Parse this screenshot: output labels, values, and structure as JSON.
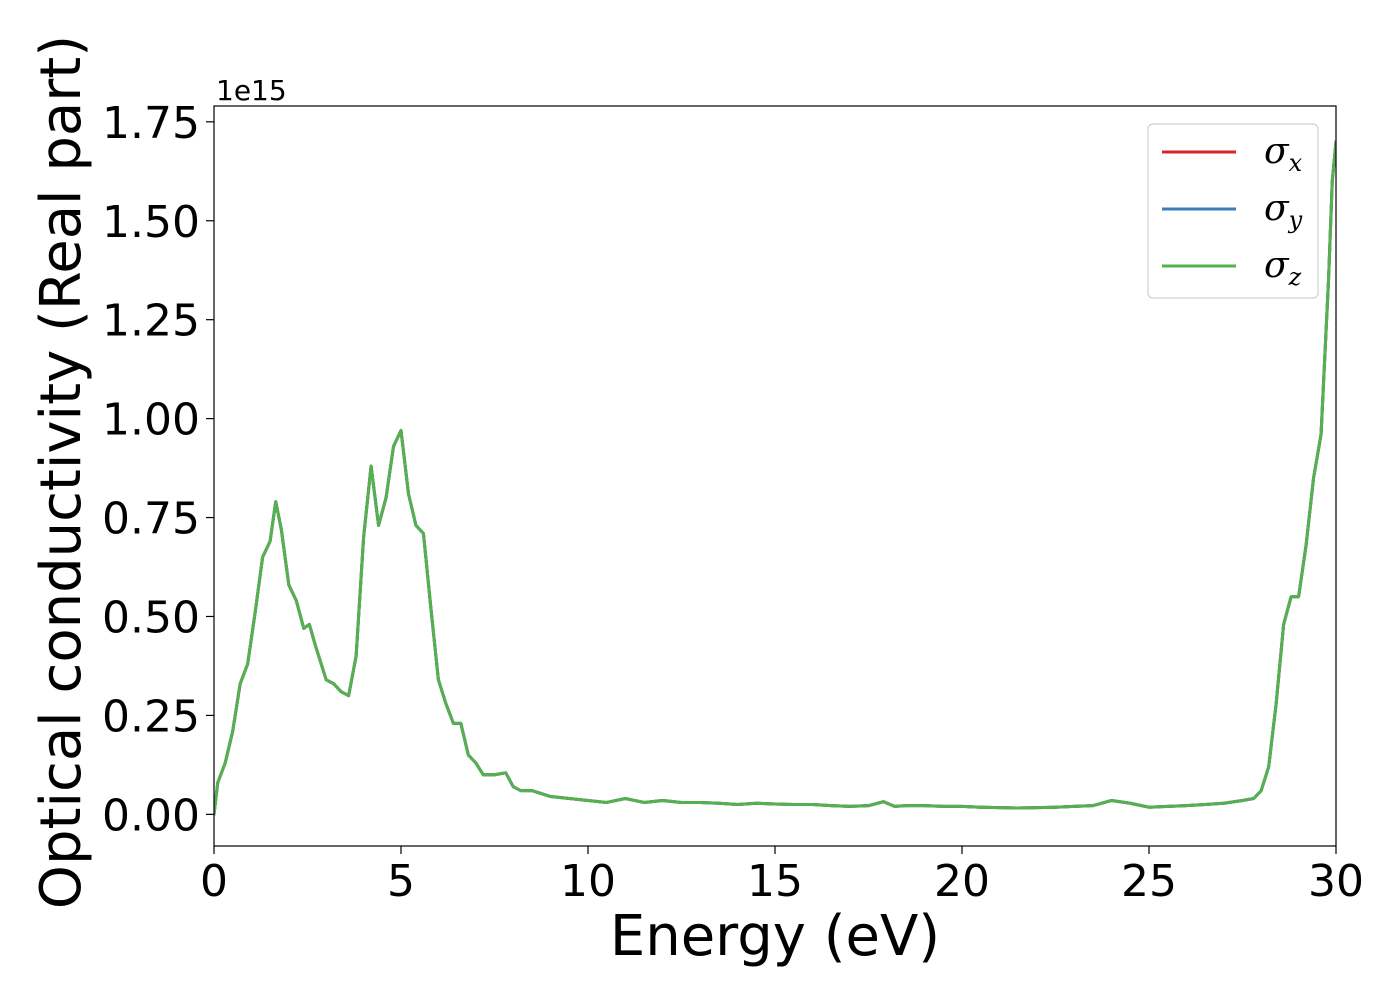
{
  "chart_data": {
    "type": "line",
    "xlabel": "Energy (eV)",
    "ylabel": "Optical conductivity (Real part)",
    "y_offset_label": "1e15",
    "xlim": [
      0,
      30
    ],
    "ylim": [
      -0.08,
      1.79
    ],
    "x_ticks": [
      0,
      5,
      10,
      15,
      20,
      25,
      30
    ],
    "x_tick_labels": [
      "0",
      "5",
      "10",
      "15",
      "20",
      "25",
      "30"
    ],
    "y_ticks": [
      0,
      0.25,
      0.5,
      0.75,
      1.0,
      1.25,
      1.5,
      1.75
    ],
    "y_tick_labels": [
      "0.00",
      "0.25",
      "0.50",
      "0.75",
      "1.00",
      "1.25",
      "1.50",
      "1.75"
    ],
    "grid": false,
    "legend_position": "top-right",
    "series": [
      {
        "name": "σx",
        "base": "σ",
        "sub": "x",
        "color": "#d62728"
      },
      {
        "name": "σy",
        "base": "σ",
        "sub": "y",
        "color": "#3a7dba"
      },
      {
        "name": "σz",
        "base": "σ",
        "sub": "z",
        "color": "#55b04f"
      }
    ],
    "x": [
      0,
      0.1,
      0.3,
      0.5,
      0.7,
      0.9,
      1.1,
      1.3,
      1.5,
      1.65,
      1.8,
      2.0,
      2.2,
      2.4,
      2.55,
      2.7,
      3.0,
      3.2,
      3.4,
      3.6,
      3.8,
      4.0,
      4.2,
      4.4,
      4.6,
      4.8,
      5.0,
      5.2,
      5.4,
      5.6,
      5.8,
      6.0,
      6.2,
      6.4,
      6.6,
      6.8,
      7.0,
      7.2,
      7.5,
      7.8,
      8.0,
      8.2,
      8.5,
      9.0,
      9.5,
      10.0,
      10.5,
      11.0,
      11.5,
      12.0,
      12.5,
      13.0,
      13.5,
      14.0,
      14.5,
      15.0,
      15.5,
      16.0,
      16.5,
      17.0,
      17.5,
      17.9,
      18.2,
      18.5,
      19.0,
      19.5,
      20.0,
      20.5,
      21.0,
      21.5,
      22.0,
      22.5,
      23.0,
      23.5,
      24.0,
      24.5,
      25.0,
      25.5,
      26.0,
      26.5,
      27.0,
      27.5,
      27.8,
      28.0,
      28.2,
      28.4,
      28.6,
      28.8,
      29.0,
      29.2,
      29.4,
      29.6,
      29.8,
      29.9,
      30.0
    ],
    "y": [
      0.0,
      0.08,
      0.13,
      0.21,
      0.33,
      0.38,
      0.51,
      0.65,
      0.69,
      0.79,
      0.72,
      0.58,
      0.54,
      0.47,
      0.48,
      0.43,
      0.34,
      0.33,
      0.31,
      0.3,
      0.4,
      0.7,
      0.88,
      0.73,
      0.8,
      0.93,
      0.97,
      0.81,
      0.73,
      0.71,
      0.52,
      0.34,
      0.28,
      0.23,
      0.23,
      0.15,
      0.13,
      0.1,
      0.1,
      0.105,
      0.07,
      0.06,
      0.06,
      0.045,
      0.04,
      0.035,
      0.03,
      0.04,
      0.03,
      0.035,
      0.03,
      0.03,
      0.028,
      0.025,
      0.028,
      0.026,
      0.025,
      0.025,
      0.022,
      0.02,
      0.022,
      0.032,
      0.02,
      0.022,
      0.022,
      0.02,
      0.02,
      0.018,
      0.017,
      0.016,
      0.017,
      0.018,
      0.02,
      0.022,
      0.035,
      0.028,
      0.018,
      0.02,
      0.022,
      0.025,
      0.028,
      0.035,
      0.04,
      0.06,
      0.12,
      0.28,
      0.48,
      0.55,
      0.55,
      0.68,
      0.85,
      0.96,
      1.35,
      1.6,
      1.7
    ]
  }
}
